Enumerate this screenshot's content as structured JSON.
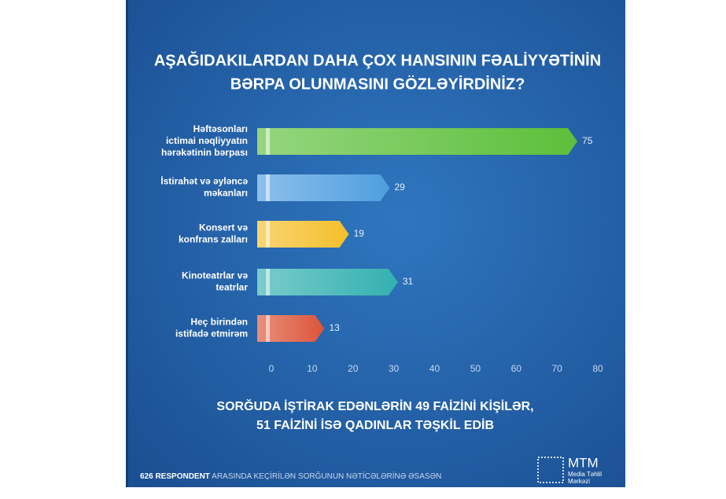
{
  "chart_data": {
    "type": "bar",
    "title": [
      "AŞAĞIDAKILARDAN DAHA ÇOX HANSININ FƏALİYYƏTİNİN",
      "BƏRPA OLUNMASINI GÖZLƏYİRDİNİZ?"
    ],
    "categories": [
      [
        "Həftəsonları",
        "ictimai nəqliyyatın",
        "hərəkətinin bərpası"
      ],
      [
        "İstirahət və əyləncə",
        "məkanları"
      ],
      [
        "Konsert və",
        "konfrans zalları"
      ],
      [
        "Kinoteatrlar və",
        "teatrlar"
      ],
      [
        "Heç birindən",
        "istifadə etmirəm"
      ]
    ],
    "values": [
      75,
      29,
      19,
      31,
      13
    ],
    "colors": [
      "#5cbf3a",
      "#4f9ee0",
      "#f5bf2a",
      "#33b0b0",
      "#dc5438"
    ],
    "xlim": [
      0,
      80
    ],
    "xticks": [
      0,
      10,
      20,
      30,
      40,
      50,
      60,
      70,
      80
    ],
    "grid": false,
    "note": [
      "SORĞUDA İŞTİRAK EDƏNLƏRİN 49 FAİZİNİ KİŞİLƏR,",
      "51 FAİZİNİ İSƏ QADINLAR TƏŞKİL EDİB"
    ]
  },
  "footer": {
    "source_bold": "626 RESPONDENT",
    "source_rest": "ARASINDA KEÇİRİLƏN SORĞUNUN NƏTİCƏLƏRİNƏ ƏSASƏN",
    "logo": "MTM",
    "logo_sub": [
      "Media Təhlil",
      "Mərkəzi"
    ]
  }
}
